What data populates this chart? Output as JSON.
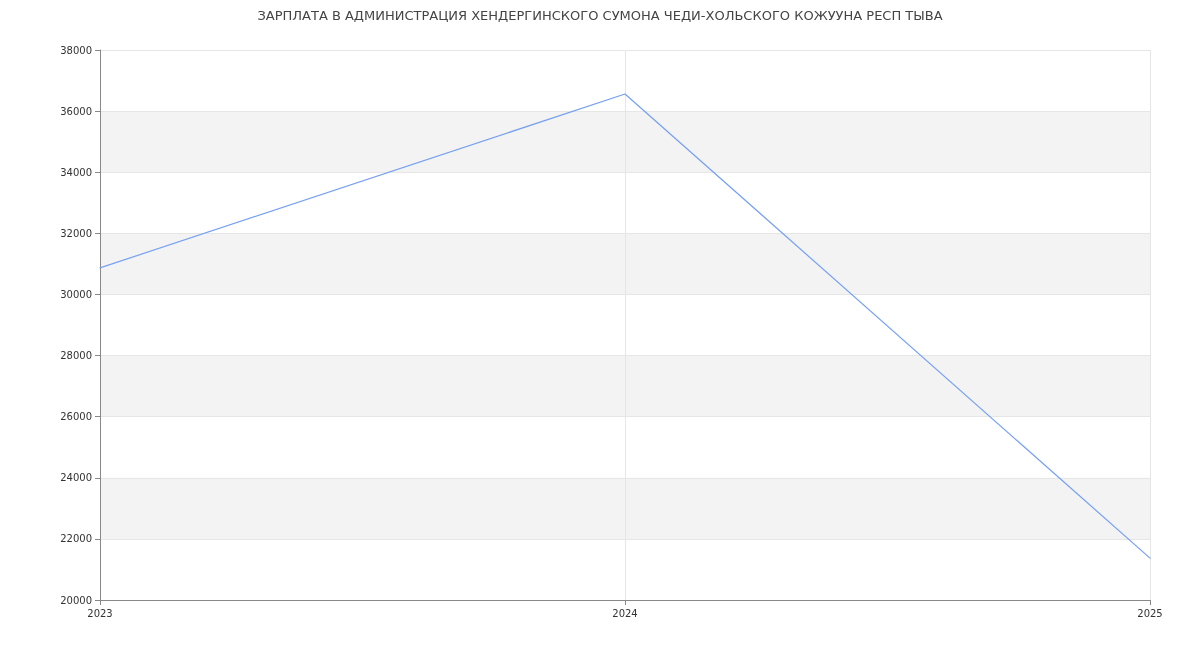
{
  "chart_data": {
    "type": "line",
    "title": "ЗАРПЛАТА В АДМИНИСТРАЦИЯ ХЕНДЕРГИНСКОГО СУМОНА ЧЕДИ-ХОЛЬСКОГО КОЖУУНА РЕСП ТЫВА",
    "x": [
      2023,
      2024,
      2025
    ],
    "series": [
      {
        "color": "#76a0f4",
        "values": [
          30870,
          36560,
          21370
        ]
      }
    ],
    "xlim": [
      2023,
      2025
    ],
    "xticks": [
      2023,
      2024,
      2025
    ],
    "ylim": [
      20000,
      38000
    ],
    "yticks": [
      20000,
      22000,
      24000,
      26000,
      28000,
      30000,
      32000,
      34000,
      36000,
      38000
    ],
    "grid": true,
    "marker": "none",
    "line_style": "solid"
  }
}
